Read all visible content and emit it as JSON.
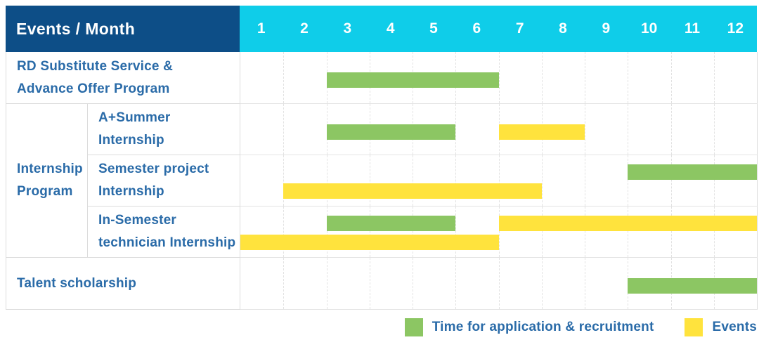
{
  "header": {
    "title": "Events / Month"
  },
  "colors": {
    "header_navy": "#0d4e87",
    "header_cyan": "#0fcde9",
    "label_text_blue": "#2a6ba8",
    "application_green": "#8cc663",
    "events_yellow": "#ffe33d",
    "grid_border": "#dcdcdc"
  },
  "chart_data": {
    "type": "table",
    "subtype": "gantt-timeline",
    "title": "Events / Month",
    "months": [
      "1",
      "2",
      "3",
      "4",
      "5",
      "6",
      "7",
      "8",
      "9",
      "10",
      "11",
      "12"
    ],
    "x_range": [
      1,
      12
    ],
    "grid": "dashed-vertical-month-lines",
    "legend_position": "bottom-right",
    "rows": [
      {
        "group": null,
        "label": "RD Substitute Service &\nAdvance Offer Program",
        "bars": [
          {
            "series": "Time for application & recruitment",
            "start_month": 3,
            "end_month": 6,
            "line": "center"
          }
        ]
      },
      {
        "group": "Internship\nProgram",
        "label": "A+Summer\nInternship",
        "bars": [
          {
            "series": "Time for application & recruitment",
            "start_month": 3,
            "end_month": 5,
            "line": "center"
          },
          {
            "series": "Events",
            "start_month": 7,
            "end_month": 8,
            "line": "center"
          }
        ]
      },
      {
        "group": "Internship\nProgram",
        "label": "Semester project\nInternship",
        "bars": [
          {
            "series": "Time for application & recruitment",
            "start_month": 10,
            "end_month": 12,
            "line": "top"
          },
          {
            "series": "Events",
            "start_month": 2,
            "end_month": 7,
            "line": "bottom"
          }
        ]
      },
      {
        "group": "Internship\nProgram",
        "label": "In-Semester\ntechnician Internship",
        "bars": [
          {
            "series": "Time for application & recruitment",
            "start_month": 3,
            "end_month": 5,
            "line": "top"
          },
          {
            "series": "Events",
            "start_month": 7,
            "end_month": 12,
            "line": "top"
          },
          {
            "series": "Events",
            "start_month": 1,
            "end_month": 6,
            "line": "bottom"
          }
        ]
      },
      {
        "group": null,
        "label": "Talent scholarship",
        "bars": [
          {
            "series": "Time for application & recruitment",
            "start_month": 10,
            "end_month": 12,
            "line": "center"
          }
        ]
      }
    ],
    "legend": [
      {
        "label": "Time for application & recruitment",
        "color": "#8cc663"
      },
      {
        "label": "Events",
        "color": "#ffe33d"
      }
    ]
  }
}
